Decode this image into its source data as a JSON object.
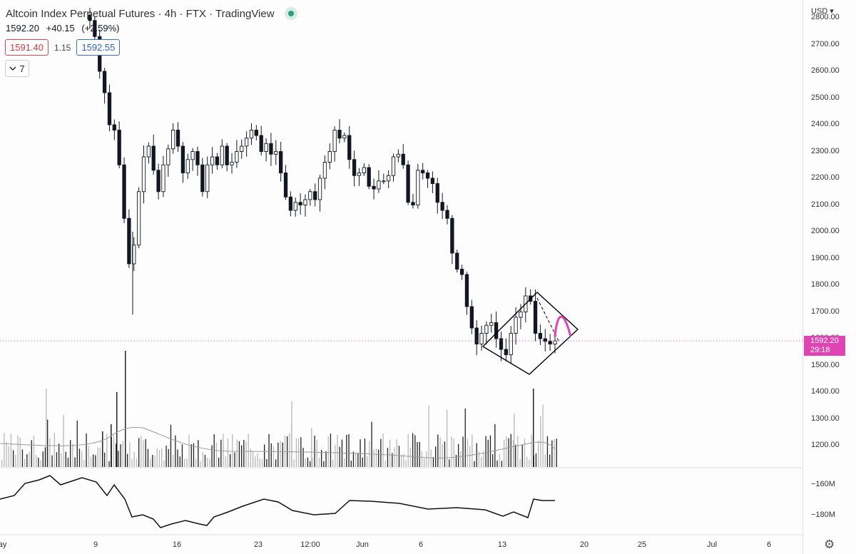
{
  "legend": {
    "title": "Altcoin Index Perpetual Futures · 4h · FTX · TradingView",
    "last": "1592.20",
    "change": "+40.15",
    "change_pct": "(+2.59%)"
  },
  "quote": {
    "bid": "1591.40",
    "spread": "1.15",
    "ask": "1592.55"
  },
  "indicators_toggle": {
    "icon": "chevron-down-icon",
    "count": "7"
  },
  "axis": {
    "currency": "USD",
    "price_ticks": [
      "2800.00",
      "2700.00",
      "2600.00",
      "2500.00",
      "2400.00",
      "2300.00",
      "2200.00",
      "2100.00",
      "2000.00",
      "1900.00",
      "1800.00",
      "1700.00",
      "1600.00",
      "1500.00",
      "1400.00",
      "1300.00",
      "1200.00"
    ],
    "price_tag_value": "1592.20",
    "price_tag_countdown": "29:18",
    "indicator_ticks": [
      "−160M",
      "−180M"
    ],
    "x_ticks": [
      "May",
      "9",
      "16",
      "23",
      "12:00",
      "Jun",
      "6",
      "13",
      "20",
      "25",
      "Jul",
      "6"
    ]
  },
  "colors": {
    "candle": "#131722",
    "current_price_line": "#e043b3",
    "projection": "#e043b3",
    "pattern": "#000000"
  },
  "chart_data": {
    "type": "candlestick",
    "timeframe": "4h",
    "ylim": [
      1130,
      2830
    ],
    "x_range": [
      "May 3",
      "Jul 8"
    ],
    "current_price": 1592.2,
    "ohlc_close_path": [
      2790,
      2730,
      2600,
      2520,
      2400,
      2380,
      2250,
      2050,
      1880,
      1950,
      2150,
      2280,
      2320,
      2230,
      2150,
      2250,
      2310,
      2380,
      2320,
      2220,
      2270,
      2300,
      2250,
      2150,
      2250,
      2280,
      2250,
      2320,
      2250,
      2260,
      2300,
      2320,
      2350,
      2380,
      2360,
      2300,
      2330,
      2290,
      2300,
      2220,
      2130,
      2080,
      2110,
      2100,
      2120,
      2150,
      2120,
      2200,
      2260,
      2300,
      2380,
      2350,
      2360,
      2270,
      2210,
      2220,
      2240,
      2170,
      2160,
      2190,
      2190,
      2210,
      2280,
      2290,
      2250,
      2110,
      2100,
      2230,
      2220,
      2200,
      2180,
      2110,
      2080,
      2050,
      1920,
      1860,
      1840,
      1720,
      1640,
      1580,
      1620,
      1650,
      1660,
      1600,
      1560,
      1540,
      1620,
      1680,
      1700,
      1760,
      1740,
      1620,
      1600,
      1590,
      1580,
      1592
    ],
    "diamond_pattern": {
      "left": {
        "date": "Jun 13",
        "price": 1590
      },
      "top": {
        "date": "Jun 15",
        "price": 1770
      },
      "right": {
        "date": "Jun 17",
        "price": 1620
      },
      "bottom": {
        "date": "Jun 15",
        "price": 1470
      }
    },
    "projection_arc": {
      "from": 1610,
      "peak": 1680,
      "to": 1620
    },
    "volume_avg_line": true,
    "indicator_range": [
      "−180M",
      "−160M"
    ]
  }
}
